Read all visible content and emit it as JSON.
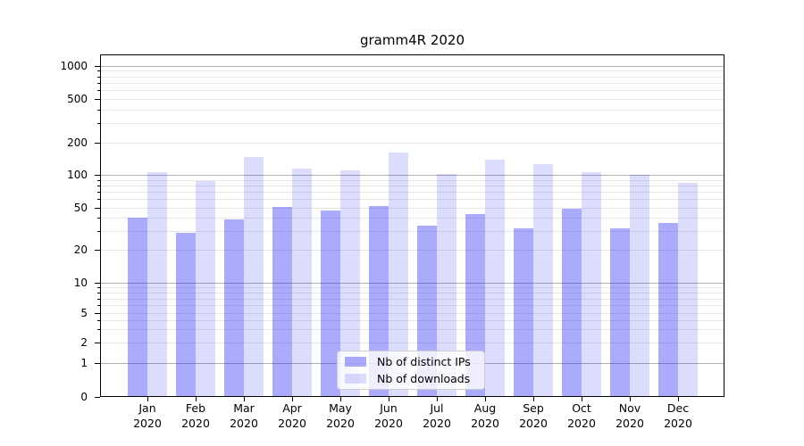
{
  "title": "gramm4R 2020",
  "legend": {
    "items": [
      {
        "label": "Nb of distinct IPs",
        "swatch": "rgba(45,45,245,0.40)"
      },
      {
        "label": "Nb of downloads",
        "swatch": "rgba(45,45,245,0.17)"
      }
    ]
  },
  "colors": {
    "bar_dark": "rgba(45,45,245,0.40)",
    "bar_light": "rgba(45,45,245,0.17)",
    "major_grid": "#b0b0b0",
    "minor_grid": "#e7e7e7",
    "spine": "#000000",
    "text": "#000000"
  },
  "chart_data": {
    "type": "bar",
    "title": "gramm4R 2020",
    "categories": [
      "Jan 2020",
      "Feb 2020",
      "Mar 2020",
      "Apr 2020",
      "May 2020",
      "Jun 2020",
      "Jul 2020",
      "Aug 2020",
      "Sep 2020",
      "Oct 2020",
      "Nov 2020",
      "Dec 2020"
    ],
    "series": [
      {
        "name": "Nb of distinct IPs",
        "values": [
          40,
          29,
          39,
          51,
          47,
          52,
          34,
          44,
          32,
          49,
          32,
          36
        ]
      },
      {
        "name": "Nb of downloads",
        "values": [
          107,
          88,
          148,
          114,
          110,
          162,
          102,
          138,
          127,
          107,
          101,
          85
        ]
      }
    ],
    "xlabel": "",
    "ylabel": "",
    "yscale": "symlog",
    "ylim": [
      0,
      1300
    ],
    "yticks": [
      0,
      1,
      2,
      5,
      10,
      20,
      50,
      100,
      200,
      500,
      1000
    ],
    "minor_grid_values": [
      2,
      3,
      4,
      5,
      6,
      7,
      8,
      9,
      20,
      30,
      40,
      50,
      60,
      70,
      80,
      90,
      200,
      300,
      400,
      500,
      600,
      700,
      800,
      900
    ],
    "major_grid_values": [
      1,
      10,
      100,
      1000
    ],
    "grid": "horizontal major+minor",
    "legend_position": "lower center inside plot"
  }
}
